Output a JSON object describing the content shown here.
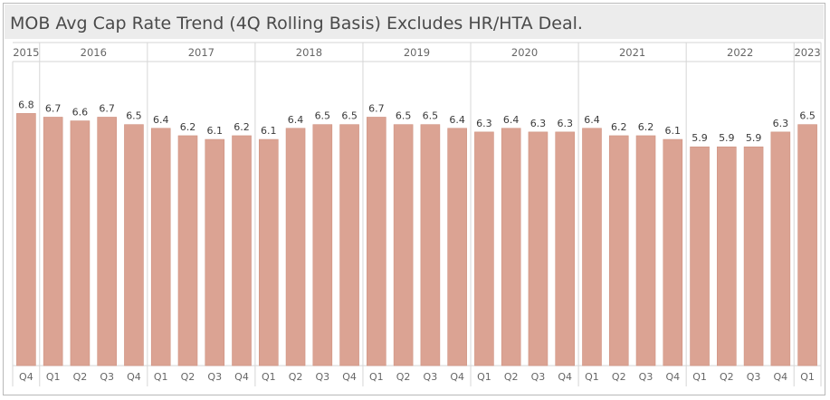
{
  "title": "MOB Avg Cap Rate Trend (4Q Rolling Basis) Excludes HR/HTA Deal.",
  "colors": {
    "bar": "#dba393",
    "bar_stroke": "#cf9382",
    "grid": "#d6d6d6",
    "header_bg": "#ececec"
  },
  "chart_data": {
    "type": "bar",
    "title": "MOB Avg Cap Rate Trend (4Q Rolling Basis) Excludes HR/HTA Deal.",
    "xlabel": "",
    "ylabel": "",
    "ylim": [
      0,
      8.2
    ],
    "grid": false,
    "years": [
      {
        "label": "2015",
        "quarters": [
          "Q4"
        ]
      },
      {
        "label": "2016",
        "quarters": [
          "Q1",
          "Q2",
          "Q3",
          "Q4"
        ]
      },
      {
        "label": "2017",
        "quarters": [
          "Q1",
          "Q2",
          "Q3",
          "Q4"
        ]
      },
      {
        "label": "2018",
        "quarters": [
          "Q1",
          "Q2",
          "Q3",
          "Q4"
        ]
      },
      {
        "label": "2019",
        "quarters": [
          "Q1",
          "Q2",
          "Q3",
          "Q4"
        ]
      },
      {
        "label": "2020",
        "quarters": [
          "Q1",
          "Q2",
          "Q3",
          "Q4"
        ]
      },
      {
        "label": "2021",
        "quarters": [
          "Q1",
          "Q2",
          "Q3",
          "Q4"
        ]
      },
      {
        "label": "2022",
        "quarters": [
          "Q1",
          "Q2",
          "Q3",
          "Q4"
        ]
      },
      {
        "label": "2023",
        "quarters": [
          "Q1"
        ]
      }
    ],
    "values": [
      6.8,
      6.7,
      6.6,
      6.7,
      6.5,
      6.4,
      6.2,
      6.1,
      6.2,
      6.1,
      6.4,
      6.5,
      6.5,
      6.7,
      6.5,
      6.5,
      6.4,
      6.3,
      6.4,
      6.3,
      6.3,
      6.4,
      6.2,
      6.2,
      6.1,
      5.9,
      5.9,
      5.9,
      6.3,
      6.5
    ],
    "value_labels": [
      "6.8",
      "6.7",
      "6.6",
      "6.7",
      "6.5",
      "6.4",
      "6.2",
      "6.1",
      "6.2",
      "6.1",
      "6.4",
      "6.5",
      "6.5",
      "6.7",
      "6.5",
      "6.5",
      "6.4",
      "6.3",
      "6.4",
      "6.3",
      "6.3",
      "6.4",
      "6.2",
      "6.2",
      "6.1",
      "5.9",
      "5.9",
      "5.9",
      "6.3",
      "6.5"
    ]
  }
}
